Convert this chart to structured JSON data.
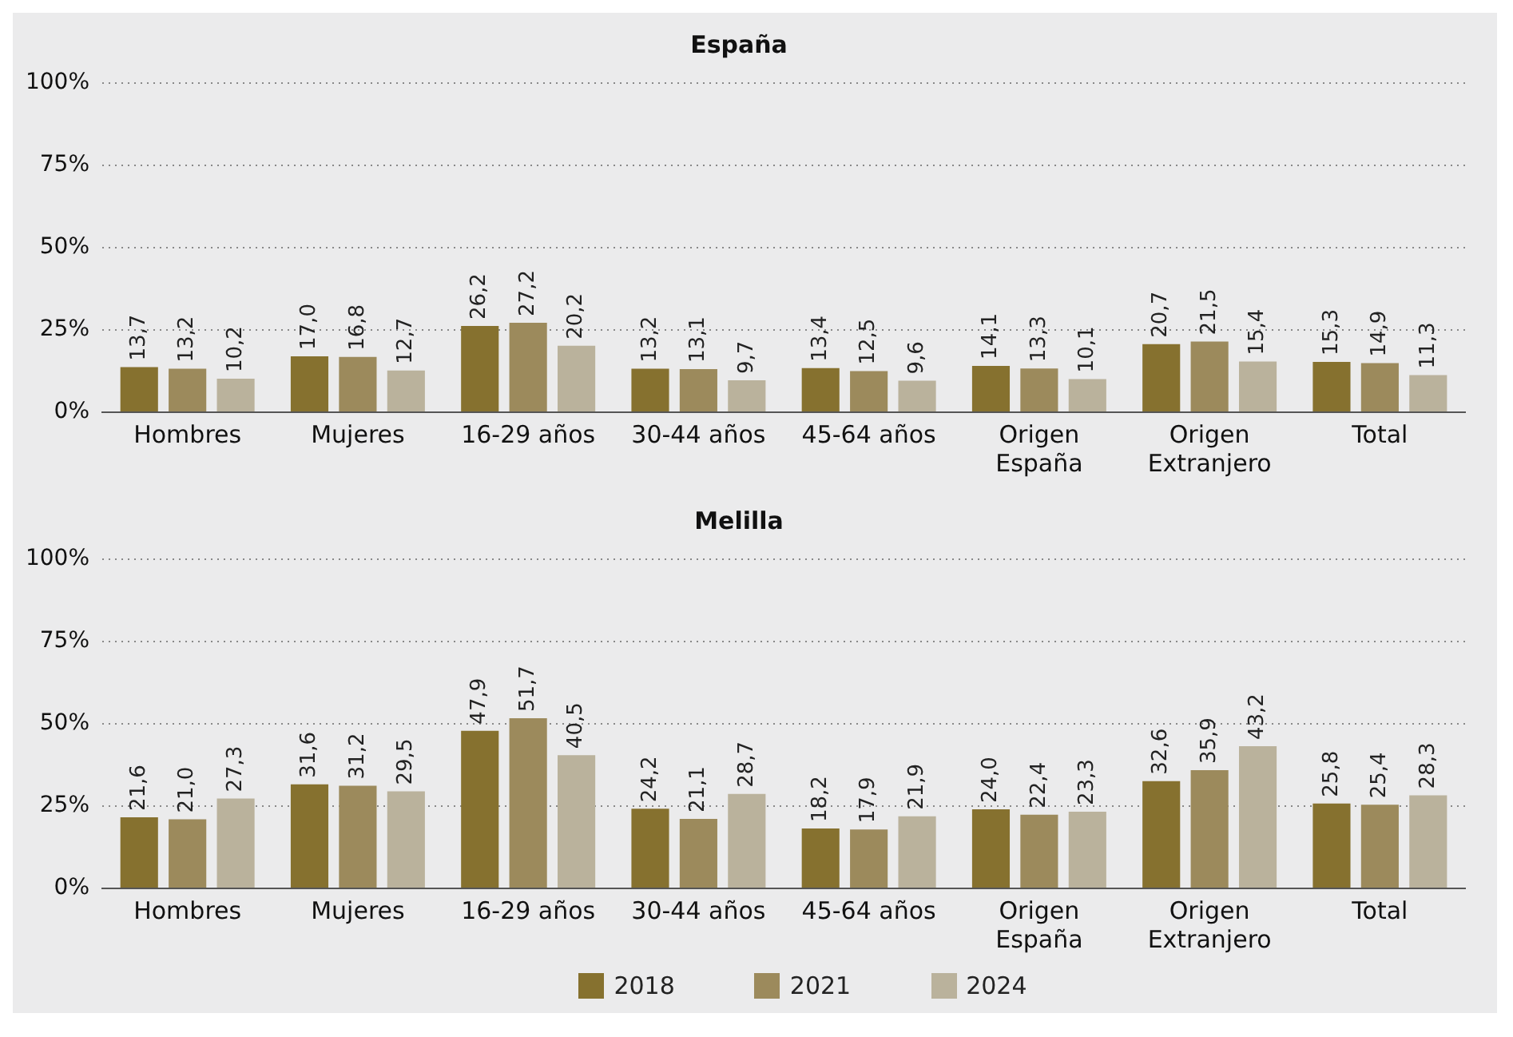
{
  "chart_data": [
    {
      "type": "bar",
      "title": "España",
      "categories": [
        "Hombres",
        "Mujeres",
        "16-29 años",
        "30-44 años",
        "45-64 años",
        "Origen España",
        "Origen Extranjero",
        "Total"
      ],
      "ylim": [
        0,
        100
      ],
      "yticks": [
        {
          "value": 0,
          "label": "0%"
        },
        {
          "value": 25,
          "label": "25%"
        },
        {
          "value": 50,
          "label": "50%"
        },
        {
          "value": 75,
          "label": "75%"
        },
        {
          "value": 100,
          "label": "100%"
        }
      ],
      "grid": "y",
      "legend": false,
      "series": [
        {
          "color": "#86712f",
          "values": [
            13.7,
            17.0,
            26.2,
            13.2,
            13.4,
            14.1,
            20.7,
            15.3
          ],
          "value_labels": [
            "13,7",
            "17,0",
            "26,2",
            "13,2",
            "13,4",
            "14,1",
            "20,7",
            "15,3"
          ]
        },
        {
          "color": "#9c8a5c",
          "values": [
            13.2,
            16.8,
            27.2,
            13.1,
            12.5,
            13.3,
            21.5,
            14.9
          ],
          "value_labels": [
            "13,2",
            "16,8",
            "27,2",
            "13,1",
            "12,5",
            "13,3",
            "21,5",
            "14,9"
          ]
        },
        {
          "color": "#bab29c",
          "values": [
            10.2,
            12.7,
            20.2,
            9.7,
            9.6,
            10.1,
            15.4,
            11.3
          ],
          "value_labels": [
            "10,2",
            "12,7",
            "20,2",
            "9,7",
            "9,6",
            "10,1",
            "15,4",
            "11,3"
          ]
        }
      ]
    },
    {
      "type": "bar",
      "title": "Melilla",
      "categories": [
        "Hombres",
        "Mujeres",
        "16-29 años",
        "30-44 años",
        "45-64 años",
        "Origen España",
        "Origen Extranjero",
        "Total"
      ],
      "ylim": [
        0,
        100
      ],
      "yticks": [
        {
          "value": 0,
          "label": "0%"
        },
        {
          "value": 25,
          "label": "25%"
        },
        {
          "value": 50,
          "label": "50%"
        },
        {
          "value": 75,
          "label": "75%"
        },
        {
          "value": 100,
          "label": "100%"
        }
      ],
      "grid": "y",
      "legend": "bottom",
      "series": [
        {
          "name": "2018",
          "color": "#86712f",
          "values": [
            21.6,
            31.6,
            47.9,
            24.2,
            18.2,
            24.0,
            32.6,
            25.8
          ],
          "value_labels": [
            "21,6",
            "31,6",
            "47,9",
            "24,2",
            "18,2",
            "24,0",
            "32,6",
            "25,8"
          ]
        },
        {
          "name": "2021",
          "color": "#9c8a5c",
          "values": [
            21.0,
            31.2,
            51.7,
            21.1,
            17.9,
            22.4,
            35.9,
            25.4
          ],
          "value_labels": [
            "21,0",
            "31,2",
            "51,7",
            "21,1",
            "17,9",
            "22,4",
            "35,9",
            "25,4"
          ]
        },
        {
          "name": "2024",
          "color": "#bab29c",
          "values": [
            27.3,
            29.5,
            40.5,
            28.7,
            21.9,
            23.3,
            43.2,
            28.3
          ],
          "value_labels": [
            "27,3",
            "29,5",
            "40,5",
            "28,7",
            "21,9",
            "23,3",
            "43,2",
            "28,3"
          ]
        }
      ]
    }
  ]
}
